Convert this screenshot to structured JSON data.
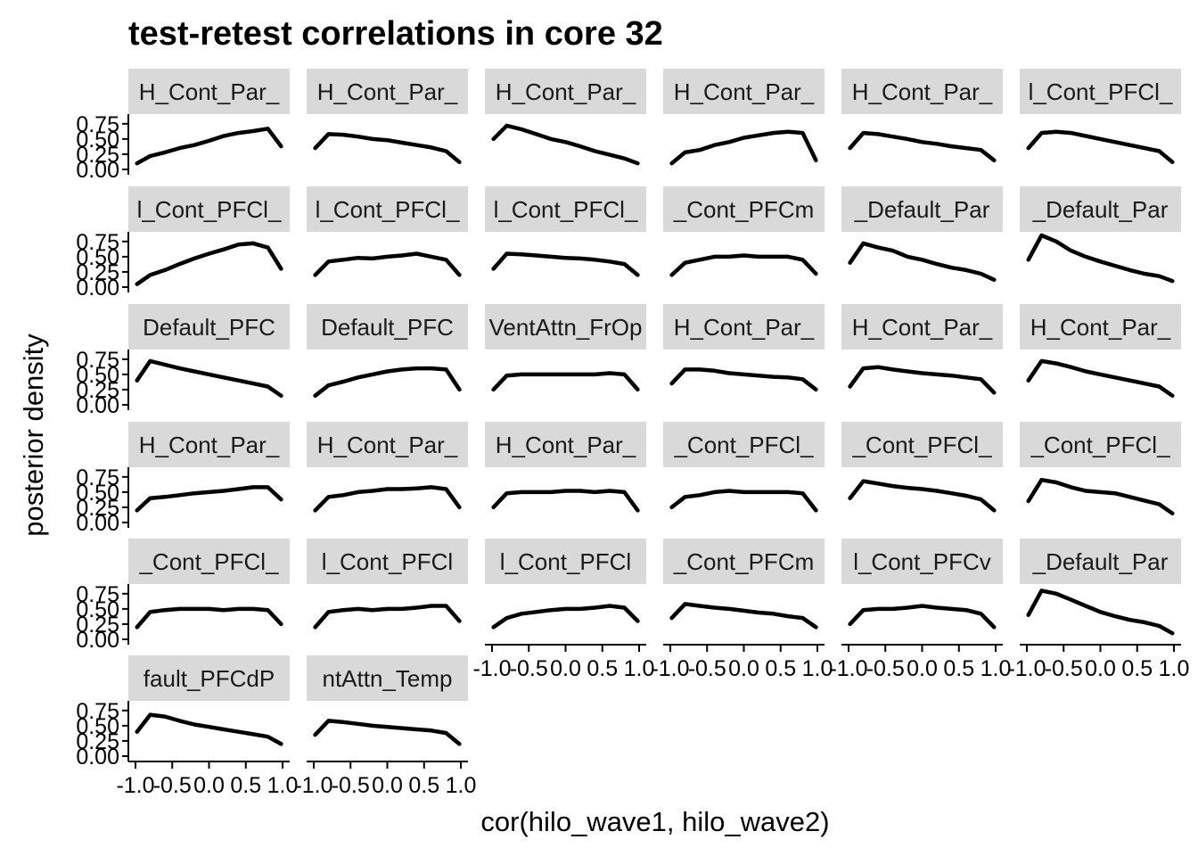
{
  "chart_data": {
    "type": "line",
    "title": "test-retest correlations in core 32",
    "xlabel": "cor(hilo_wave1, hilo_wave2)",
    "ylabel": "posterior density",
    "xlim": [
      -1.0,
      1.0
    ],
    "ylim": [
      0.0,
      0.85
    ],
    "x_tick_labels": [
      "-1.0",
      "-0.5",
      "0.0",
      "0.5",
      "1.0"
    ],
    "x_ticks": [
      -1.0,
      -0.5,
      0.0,
      0.5,
      1.0
    ],
    "y_tick_labels": [
      "0.00",
      "0.25",
      "0.50",
      "0.75"
    ],
    "y_ticks": [
      0.0,
      0.25,
      0.5,
      0.75
    ],
    "grid": false,
    "panel_x": [
      -0.98,
      -0.8,
      -0.6,
      -0.4,
      -0.2,
      0.0,
      0.2,
      0.4,
      0.6,
      0.8,
      0.98
    ],
    "panels": [
      {
        "strip": "H_Cont_Par_",
        "values": [
          0.1,
          0.22,
          0.28,
          0.35,
          0.4,
          0.47,
          0.55,
          0.6,
          0.63,
          0.67,
          0.38
        ]
      },
      {
        "strip": "H_Cont_Par_",
        "values": [
          0.35,
          0.58,
          0.57,
          0.54,
          0.5,
          0.48,
          0.44,
          0.4,
          0.36,
          0.3,
          0.12
        ]
      },
      {
        "strip": "H_Cont_Par_",
        "values": [
          0.5,
          0.72,
          0.66,
          0.58,
          0.5,
          0.45,
          0.38,
          0.3,
          0.24,
          0.18,
          0.1
        ]
      },
      {
        "strip": "H_Cont_Par_",
        "values": [
          0.1,
          0.28,
          0.32,
          0.4,
          0.45,
          0.52,
          0.56,
          0.6,
          0.62,
          0.6,
          0.15
        ]
      },
      {
        "strip": "H_Cont_Par_",
        "values": [
          0.35,
          0.6,
          0.58,
          0.54,
          0.5,
          0.45,
          0.42,
          0.38,
          0.35,
          0.32,
          0.15
        ]
      },
      {
        "strip": "l_Cont_PFCl_",
        "values": [
          0.35,
          0.6,
          0.62,
          0.6,
          0.55,
          0.5,
          0.45,
          0.4,
          0.35,
          0.3,
          0.12
        ]
      },
      {
        "strip": "l_Cont_PFCl_",
        "values": [
          0.05,
          0.2,
          0.28,
          0.38,
          0.47,
          0.55,
          0.62,
          0.7,
          0.72,
          0.65,
          0.3
        ]
      },
      {
        "strip": "l_Cont_PFCl_",
        "values": [
          0.2,
          0.42,
          0.45,
          0.48,
          0.47,
          0.5,
          0.52,
          0.55,
          0.5,
          0.45,
          0.2
        ]
      },
      {
        "strip": "l_Cont_PFCl_",
        "values": [
          0.3,
          0.55,
          0.54,
          0.52,
          0.5,
          0.48,
          0.47,
          0.45,
          0.42,
          0.38,
          0.2
        ]
      },
      {
        "strip": "_Cont_PFCm",
        "values": [
          0.2,
          0.4,
          0.45,
          0.5,
          0.5,
          0.52,
          0.5,
          0.5,
          0.5,
          0.45,
          0.22
        ]
      },
      {
        "strip": "_Default_Par",
        "values": [
          0.4,
          0.72,
          0.65,
          0.6,
          0.5,
          0.45,
          0.38,
          0.32,
          0.28,
          0.22,
          0.12
        ]
      },
      {
        "strip": "_Default_Par",
        "values": [
          0.45,
          0.85,
          0.75,
          0.6,
          0.5,
          0.42,
          0.35,
          0.28,
          0.22,
          0.18,
          0.1
        ]
      },
      {
        "strip": "Default_PFC",
        "values": [
          0.4,
          0.72,
          0.66,
          0.6,
          0.55,
          0.5,
          0.45,
          0.4,
          0.35,
          0.3,
          0.15
        ]
      },
      {
        "strip": "Default_PFC",
        "values": [
          0.15,
          0.32,
          0.38,
          0.45,
          0.5,
          0.55,
          0.58,
          0.6,
          0.6,
          0.58,
          0.25
        ]
      },
      {
        "strip": "VentAttn_FrOp",
        "values": [
          0.25,
          0.48,
          0.5,
          0.5,
          0.5,
          0.5,
          0.5,
          0.5,
          0.52,
          0.5,
          0.25
        ]
      },
      {
        "strip": "H_Cont_Par_",
        "values": [
          0.35,
          0.58,
          0.58,
          0.56,
          0.52,
          0.5,
          0.48,
          0.46,
          0.45,
          0.42,
          0.25
        ]
      },
      {
        "strip": "H_Cont_Par_",
        "values": [
          0.3,
          0.6,
          0.62,
          0.58,
          0.55,
          0.52,
          0.5,
          0.48,
          0.45,
          0.42,
          0.2
        ]
      },
      {
        "strip": "H_Cont_Par_",
        "values": [
          0.4,
          0.72,
          0.68,
          0.62,
          0.55,
          0.5,
          0.45,
          0.4,
          0.35,
          0.3,
          0.15
        ]
      },
      {
        "strip": "H_Cont_Par_",
        "values": [
          0.2,
          0.4,
          0.42,
          0.45,
          0.48,
          0.5,
          0.52,
          0.55,
          0.58,
          0.58,
          0.38
        ]
      },
      {
        "strip": "H_Cont_Par_",
        "values": [
          0.2,
          0.42,
          0.45,
          0.5,
          0.52,
          0.55,
          0.55,
          0.56,
          0.58,
          0.55,
          0.25
        ]
      },
      {
        "strip": "H_Cont_Par_",
        "values": [
          0.25,
          0.48,
          0.5,
          0.5,
          0.5,
          0.52,
          0.52,
          0.5,
          0.52,
          0.5,
          0.2
        ]
      },
      {
        "strip": "_Cont_PFCl_",
        "values": [
          0.25,
          0.42,
          0.45,
          0.5,
          0.52,
          0.5,
          0.5,
          0.5,
          0.5,
          0.48,
          0.2
        ]
      },
      {
        "strip": "_Cont_PFCl_",
        "values": [
          0.4,
          0.68,
          0.64,
          0.6,
          0.57,
          0.55,
          0.52,
          0.48,
          0.44,
          0.38,
          0.2
        ]
      },
      {
        "strip": "_Cont_PFCl_",
        "values": [
          0.35,
          0.7,
          0.66,
          0.58,
          0.52,
          0.5,
          0.48,
          0.42,
          0.36,
          0.3,
          0.15
        ]
      },
      {
        "strip": "_Cont_PFCl_",
        "values": [
          0.2,
          0.45,
          0.48,
          0.5,
          0.5,
          0.5,
          0.48,
          0.5,
          0.5,
          0.48,
          0.25
        ]
      },
      {
        "strip": "l_Cont_PFCl",
        "values": [
          0.2,
          0.45,
          0.48,
          0.5,
          0.48,
          0.5,
          0.5,
          0.52,
          0.55,
          0.55,
          0.3
        ]
      },
      {
        "strip": "l_Cont_PFCl",
        "values": [
          0.2,
          0.35,
          0.42,
          0.45,
          0.48,
          0.5,
          0.5,
          0.52,
          0.55,
          0.52,
          0.3
        ]
      },
      {
        "strip": "_Cont_PFCm",
        "values": [
          0.35,
          0.58,
          0.55,
          0.52,
          0.5,
          0.47,
          0.44,
          0.42,
          0.38,
          0.35,
          0.2
        ]
      },
      {
        "strip": "l_Cont_PFCv",
        "values": [
          0.25,
          0.48,
          0.5,
          0.5,
          0.52,
          0.55,
          0.52,
          0.5,
          0.48,
          0.42,
          0.2
        ]
      },
      {
        "strip": "_Default_Par",
        "values": [
          0.4,
          0.8,
          0.75,
          0.65,
          0.55,
          0.45,
          0.38,
          0.32,
          0.28,
          0.22,
          0.1
        ]
      },
      {
        "strip": "fault_PFCdP",
        "values": [
          0.4,
          0.68,
          0.65,
          0.58,
          0.52,
          0.48,
          0.44,
          0.4,
          0.36,
          0.32,
          0.2
        ]
      },
      {
        "strip": "ntAttn_Temp",
        "values": [
          0.35,
          0.58,
          0.56,
          0.53,
          0.5,
          0.48,
          0.46,
          0.44,
          0.42,
          0.38,
          0.2
        ]
      }
    ]
  }
}
